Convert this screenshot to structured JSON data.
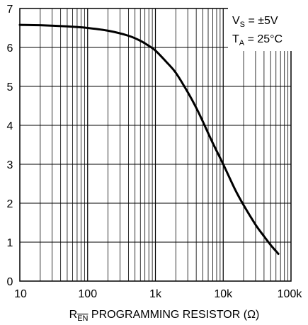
{
  "chart_data": {
    "type": "line",
    "title": "",
    "x_scale": "log",
    "xlim": [
      10,
      100000
    ],
    "ylim": [
      0,
      7
    ],
    "grid": true,
    "xlabel": {
      "prefix": "R",
      "subscript": "EN",
      "suffix": " PROGRAMMING RESISTOR (Ω)"
    },
    "ylabel": "",
    "x_ticks": [
      10,
      100,
      1000,
      10000,
      100000
    ],
    "x_tick_labels": [
      "10",
      "100",
      "1k",
      "10k",
      "100k"
    ],
    "y_ticks": [
      0,
      1,
      2,
      3,
      4,
      5,
      6,
      7
    ],
    "y_tick_labels": [
      "0",
      "1",
      "2",
      "3",
      "4",
      "5",
      "6",
      "7"
    ],
    "annotations": [
      {
        "main": "V",
        "sub": "S",
        "rest": " = ±5V"
      },
      {
        "main": "T",
        "sub": "A",
        "rest": " = 25°C"
      }
    ],
    "series": [
      {
        "x": [
          10,
          20,
          50,
          100,
          200,
          400,
          600,
          800,
          1000,
          1500,
          2000,
          3000,
          4000,
          5000,
          7000,
          10000,
          15000,
          20000,
          30000,
          40000,
          50000,
          65000
        ],
        "y": [
          6.58,
          6.57,
          6.54,
          6.5,
          6.43,
          6.3,
          6.17,
          6.04,
          5.92,
          5.6,
          5.35,
          4.85,
          4.45,
          4.1,
          3.55,
          3.0,
          2.35,
          1.95,
          1.45,
          1.15,
          0.93,
          0.7
        ]
      }
    ],
    "line_color": "#000000"
  }
}
